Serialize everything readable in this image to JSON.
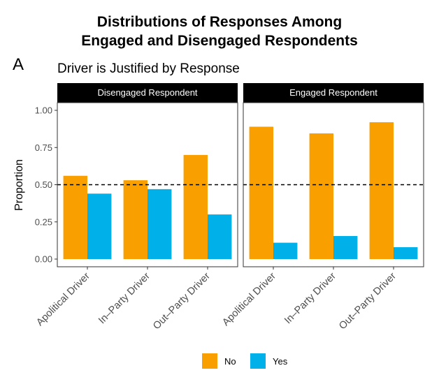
{
  "figure": {
    "title_line1": "Distributions of Responses Among",
    "title_line2": "Engaged and Disengaged Respondents",
    "panel_letter": "A",
    "subtitle": "Driver is Justified by Response"
  },
  "chart_data": {
    "type": "bar",
    "title": "Distributions of Responses Among Engaged and Disengaged Respondents",
    "subtitle": "Driver is Justified by Response",
    "ylabel": "Proportion",
    "xlabel": "",
    "ylim": [
      0,
      1
    ],
    "yticks": [
      0.0,
      0.25,
      0.5,
      0.75,
      1.0
    ],
    "ytick_labels": [
      "0.00",
      "0.25",
      "0.50",
      "0.75",
      "1.00"
    ],
    "reference_line": {
      "y": 0.5,
      "style": "dashed",
      "color": "#000000"
    },
    "grid": false,
    "legend_position": "bottom",
    "categories": [
      "Apolitical Driver",
      "In–Party Driver",
      "Out–Party Driver"
    ],
    "legend": [
      {
        "name": "No",
        "color": "#F9A000"
      },
      {
        "name": "Yes",
        "color": "#00B1E9"
      }
    ],
    "facets": [
      {
        "label": "Disengaged Respondent",
        "series": [
          {
            "name": "No",
            "color": "#F9A000",
            "values": [
              0.56,
              0.53,
              0.7
            ]
          },
          {
            "name": "Yes",
            "color": "#00B1E9",
            "values": [
              0.44,
              0.47,
              0.3
            ]
          }
        ]
      },
      {
        "label": "Engaged Respondent",
        "series": [
          {
            "name": "No",
            "color": "#F9A000",
            "values": [
              0.89,
              0.845,
              0.92
            ]
          },
          {
            "name": "Yes",
            "color": "#00B1E9",
            "values": [
              0.11,
              0.155,
              0.08
            ]
          }
        ]
      }
    ]
  }
}
